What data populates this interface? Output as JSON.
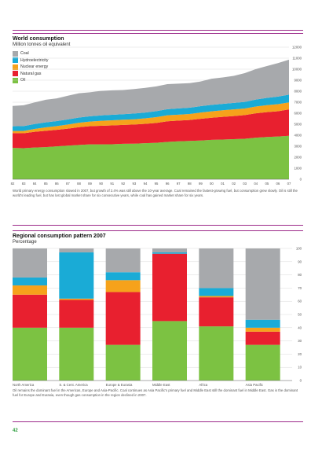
{
  "chart_data": [
    {
      "type": "area",
      "stacked": true,
      "title": "World consumption",
      "subtitle": "Million tonnes oil equivalent",
      "x": [
        "82",
        "83",
        "84",
        "85",
        "86",
        "87",
        "88",
        "89",
        "90",
        "91",
        "92",
        "93",
        "94",
        "95",
        "96",
        "97",
        "98",
        "99",
        "00",
        "01",
        "02",
        "03",
        "04",
        "05",
        "06",
        "07"
      ],
      "series": [
        {
          "name": "Oil",
          "color": "#7cc242",
          "values": [
            2850,
            2820,
            2880,
            2920,
            2990,
            3050,
            3120,
            3170,
            3170,
            3180,
            3220,
            3230,
            3280,
            3310,
            3390,
            3450,
            3480,
            3520,
            3580,
            3610,
            3640,
            3680,
            3780,
            3840,
            3880,
            3950
          ]
        },
        {
          "name": "Natural gas",
          "color": "#e8202f",
          "values": [
            1350,
            1360,
            1430,
            1480,
            1500,
            1550,
            1610,
            1650,
            1690,
            1710,
            1720,
            1740,
            1760,
            1810,
            1880,
            1880,
            1900,
            1970,
            2010,
            2060,
            2100,
            2150,
            2210,
            2260,
            2300,
            2400
          ]
        },
        {
          "name": "Nuclear energy",
          "color": "#f6a21b",
          "values": [
            180,
            210,
            260,
            310,
            340,
            370,
            400,
            420,
            450,
            470,
            470,
            480,
            500,
            520,
            540,
            540,
            550,
            570,
            580,
            600,
            610,
            600,
            620,
            630,
            640,
            630
          ]
        },
        {
          "name": "Hydroelectricity",
          "color": "#1aabd6",
          "values": [
            430,
            440,
            450,
            460,
            460,
            470,
            480,
            480,
            490,
            500,
            500,
            520,
            520,
            550,
            560,
            570,
            570,
            580,
            590,
            580,
            590,
            600,
            630,
            660,
            690,
            710
          ]
        },
        {
          "name": "Coal",
          "color": "#a7a9ac",
          "values": [
            1850,
            1890,
            1960,
            2050,
            2060,
            2150,
            2200,
            2180,
            2230,
            2220,
            2200,
            2230,
            2240,
            2250,
            2270,
            2250,
            2230,
            2240,
            2370,
            2400,
            2450,
            2610,
            2770,
            2900,
            3040,
            3180
          ]
        }
      ],
      "ylim": [
        0,
        12000
      ],
      "yticks": [
        0,
        1000,
        2000,
        3000,
        4000,
        5000,
        6000,
        7000,
        8000,
        9000,
        10000,
        11000,
        12000
      ],
      "legend": "top-left",
      "note": "World primary energy consumption slowed in 2007, but growth of 2.4% was still above the 10-year average. Coal remained the fastest-growing fuel, but consumption grew slowly. Oil is still the world's leading fuel, but has lost global market share for six consecutive years, while coal has gained market share for six years."
    },
    {
      "type": "bar",
      "stacked": true,
      "title": "Regional consumption pattern 2007",
      "subtitle": "Percentage",
      "categories": [
        "North America",
        "S. & Cent. America",
        "Europe & Eurasia",
        "Middle East",
        "Africa",
        "Asia Pacific"
      ],
      "series": [
        {
          "name": "Oil",
          "color": "#7cc242",
          "values": [
            40,
            40,
            27,
            45,
            41,
            27
          ]
        },
        {
          "name": "Natural gas",
          "color": "#e8202f",
          "values": [
            25,
            21,
            40,
            51,
            22,
            10
          ]
        },
        {
          "name": "Nuclear energy",
          "color": "#f6a21b",
          "values": [
            7,
            1,
            9,
            0,
            1,
            3
          ]
        },
        {
          "name": "Hydroelectricity",
          "color": "#1aabd6",
          "values": [
            6,
            35,
            6,
            1,
            6,
            6
          ]
        },
        {
          "name": "Coal",
          "color": "#a7a9ac",
          "values": [
            22,
            3,
            18,
            3,
            30,
            54
          ]
        }
      ],
      "ylim": [
        0,
        100
      ],
      "yticks": [
        0,
        10,
        20,
        30,
        40,
        50,
        60,
        70,
        80,
        90,
        100
      ],
      "note": "Oil remains the dominant fuel in the Americas, Europe and Asia-Pacific. Coal continues as Asia Pacific's primary fuel and Middle East still the dominant fuel in Middle East. Gas is the dominant fuel for Europe and Eurasia, even though gas consumption in the region declined in 2007."
    }
  ],
  "page_number": "42"
}
